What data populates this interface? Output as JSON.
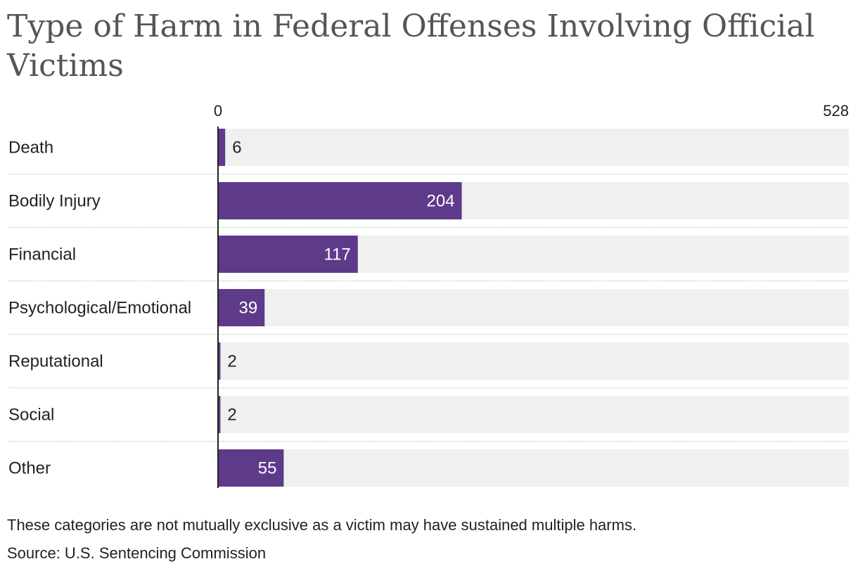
{
  "chart_data": {
    "type": "bar",
    "orientation": "horizontal",
    "title": "Type of Harm in Federal Offenses Involving Official Victims",
    "categories": [
      "Death",
      "Bodily Injury",
      "Financial",
      "Psychological/Emotional",
      "Reputational",
      "Social",
      "Other"
    ],
    "values": [
      6,
      204,
      117,
      39,
      2,
      2,
      55
    ],
    "xlim": [
      0,
      528
    ],
    "tick_labels": [
      "0",
      "528"
    ],
    "bar_color": "#5e3a8a",
    "track_color": "#f0f0f0",
    "note": "These categories are not mutually exclusive as a victim may have sustained multiple harms.",
    "source": "Source: U.S. Sentencing Commission"
  }
}
